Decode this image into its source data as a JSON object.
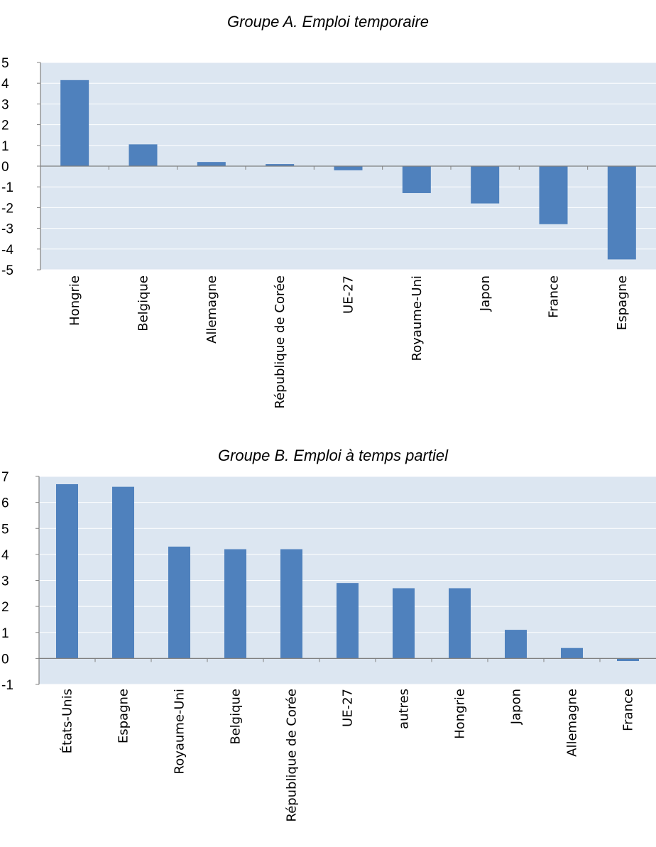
{
  "chart_data": [
    {
      "type": "bar",
      "title": "Groupe A. Emploi temporaire",
      "xlabel": "",
      "ylabel": "",
      "ylim": [
        -5,
        5
      ],
      "yticks": [
        "5",
        "4",
        "3",
        "2",
        "1",
        "0",
        "-1",
        "-2",
        "-3",
        "-4",
        "-5"
      ],
      "grid": true,
      "categories": [
        "Hongrie",
        "Belgique",
        "Allemagne",
        "République de Corée",
        "UE-27",
        "Royaume-Uni",
        "Japon",
        "France",
        "Espagne"
      ],
      "values": [
        4.15,
        1.05,
        0.2,
        0.1,
        -0.2,
        -1.3,
        -1.8,
        -2.8,
        -4.5
      ],
      "colors": {
        "bar": "#4f81bd",
        "plot_bg": "#dce6f1",
        "grid": "#ffffff",
        "axis": "#808080"
      }
    },
    {
      "type": "bar",
      "title": "Groupe B. Emploi à temps partiel",
      "xlabel": "",
      "ylabel": "",
      "ylim": [
        -1,
        7
      ],
      "yticks": [
        "7",
        "6",
        "5",
        "4",
        "3",
        "2",
        "1",
        "0",
        "-1"
      ],
      "grid": true,
      "categories": [
        "États-Unis",
        "Espagne",
        "Royaume-Uni",
        "Belgique",
        "République de Corée",
        "UE-27",
        "autres",
        "Hongrie",
        "Japon",
        "Allemagne",
        "France"
      ],
      "values": [
        6.7,
        6.6,
        4.3,
        4.2,
        4.2,
        2.9,
        2.7,
        2.7,
        1.1,
        0.4,
        -0.1
      ],
      "colors": {
        "bar": "#4f81bd",
        "plot_bg": "#dce6f1",
        "grid": "#ffffff",
        "axis": "#808080"
      }
    }
  ]
}
